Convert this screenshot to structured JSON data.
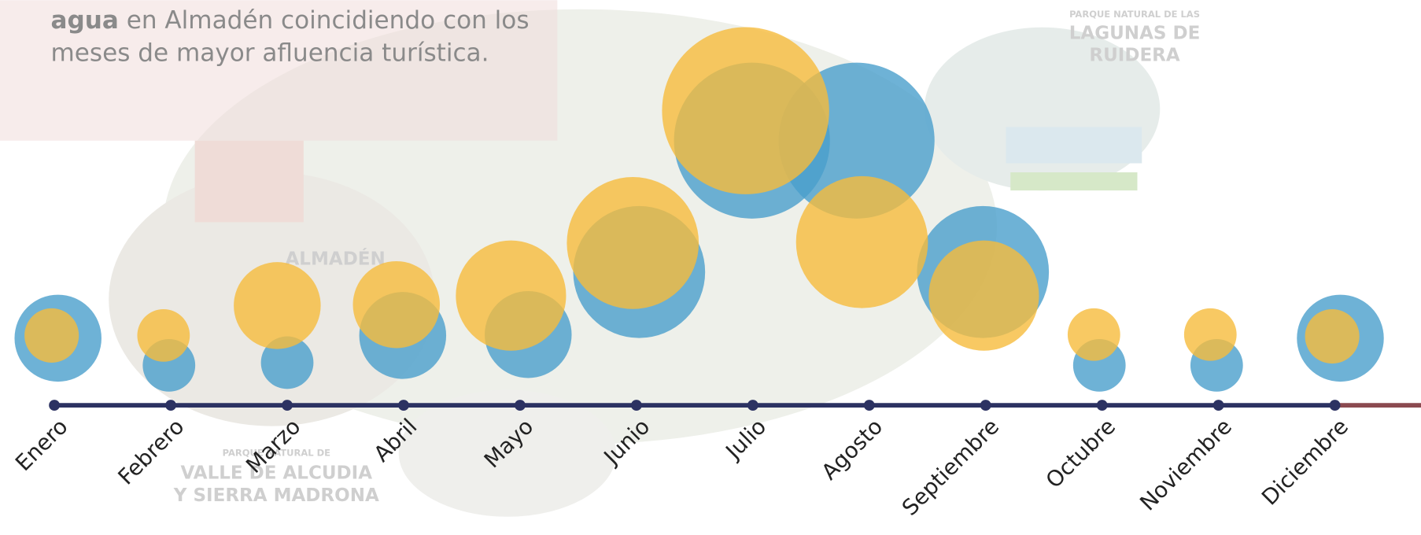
{
  "chart_data": {
    "type": "bubble-timeline",
    "categories": [
      "Enero",
      "Febrero",
      "Marzo",
      "Abril",
      "Mayo",
      "Junio",
      "Julio",
      "Agosto",
      "Septiembre",
      "Octubre",
      "Noviembre",
      "Diciembre"
    ],
    "series": [
      {
        "color": "#4a9fcc",
        "values": [
          23,
          8.4,
          8.4,
          23,
          23,
          53,
          74,
          74,
          53,
          8.4,
          8.4,
          23
        ]
      },
      {
        "color": "#f6bb3c",
        "values": [
          9,
          8.4,
          23,
          23,
          37,
          53,
          85,
          53,
          37,
          8.4,
          8.4,
          9
        ]
      }
    ]
  },
  "intro": {
    "bold": "agua",
    "rest": " en Almadén coincidiendo con los",
    "line2": "meses de mayor afluencia turística."
  },
  "background_labels": {
    "almaden": "ALMADÉN",
    "ruidera_small": "PARQUE NATURAL DE LAS",
    "ruidera_1": "LAGUNAS DE",
    "ruidera_2": "RUIDERA",
    "alcudia_small": "PARQUE NATURAL DE",
    "alcudia_1": "VALLE DE ALCUDIA",
    "alcudia_2": "Y SIERRA MADRONA"
  }
}
